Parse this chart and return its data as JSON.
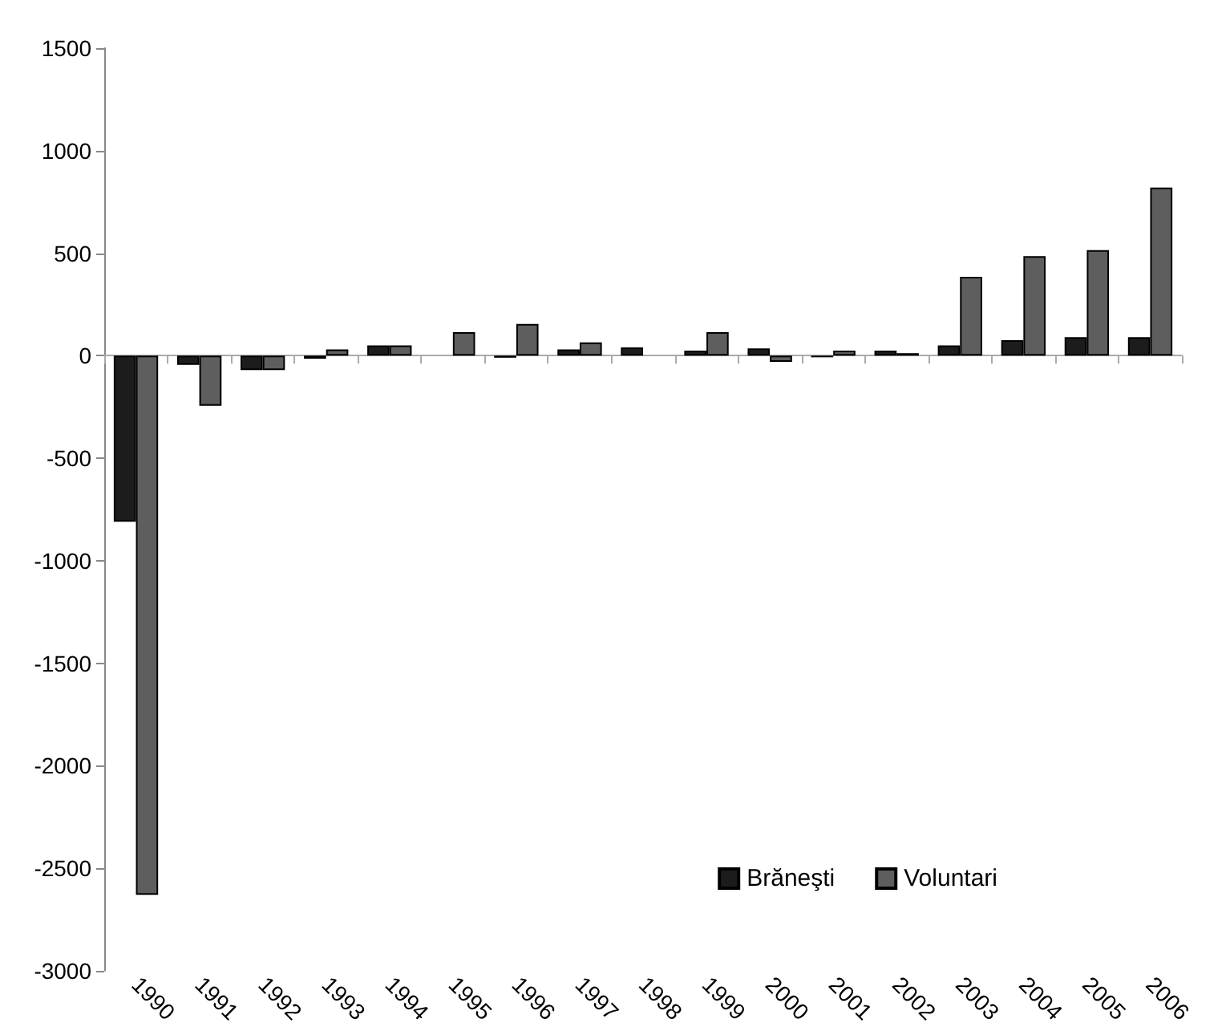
{
  "chart_data": {
    "type": "bar",
    "categories": [
      "1990",
      "1991",
      "1992",
      "1993",
      "1994",
      "1995",
      "1996",
      "1997",
      "1998",
      "1999",
      "2000",
      "2001",
      "2002",
      "2003",
      "2004",
      "2005",
      "2006"
    ],
    "series": [
      {
        "name": "Brăneşti",
        "color": "#1c1c1c",
        "values": [
          -810,
          -45,
          -70,
          -15,
          50,
          null,
          -10,
          30,
          40,
          25,
          35,
          -8,
          25,
          50,
          75,
          90,
          90
        ]
      },
      {
        "name": "Voluntari",
        "color": "#5e5e5e",
        "values": [
          -2630,
          -245,
          -70,
          30,
          50,
          115,
          155,
          65,
          null,
          115,
          -30,
          25,
          12,
          385,
          485,
          515,
          820
        ]
      }
    ],
    "ylim": [
      -3000,
      1500
    ],
    "yticks": [
      -3000,
      -2500,
      -2000,
      -1500,
      -1000,
      -500,
      0,
      500,
      1000,
      1500
    ],
    "legend": "bottom right"
  }
}
